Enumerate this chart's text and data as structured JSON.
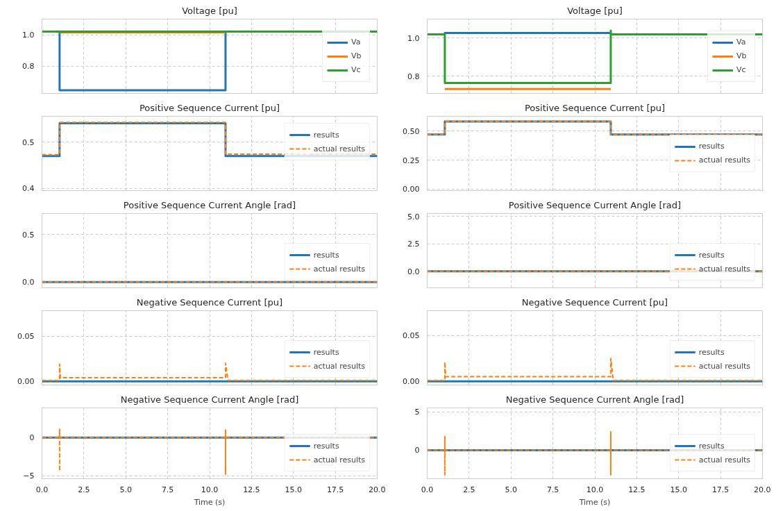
{
  "chart_data": [
    {
      "type": "line",
      "title": "Voltage [pu]",
      "xlim": [
        0,
        20
      ],
      "xticks": [
        0,
        2.5,
        5,
        7.5,
        10,
        12.5,
        15,
        17.5,
        20
      ],
      "ylim": [
        0.625,
        1.1
      ],
      "yticks": [
        0.8,
        {
          "value": 1.0,
          "label": "1.0"
        }
      ],
      "tick_labels": "y",
      "grid": true,
      "legend": "right",
      "line_style": "solid",
      "series": [
        {
          "name": "Va",
          "color": "#1f77b4",
          "x": [
            1.05,
            1.05,
            10.95,
            10.95
          ],
          "values": [
            1.02,
            0.645,
            0.645,
            1.02
          ]
        },
        {
          "name": "Vb",
          "color": "#ff7f0e",
          "x": [
            1.05,
            10.95
          ],
          "values": [
            1.015,
            1.015
          ]
        },
        {
          "name": "Vc",
          "color": "#2ca02c",
          "x": [
            0,
            1.05,
            1.05,
            10.95,
            10.95,
            20
          ],
          "values": [
            1.02,
            1.02,
            1.02,
            1.02,
            1.02,
            1.02
          ]
        }
      ]
    },
    {
      "type": "line",
      "title": "Positive Sequence Current [pu]",
      "xlim": [
        0,
        20
      ],
      "xticks": [
        0,
        2.5,
        5,
        7.5,
        10,
        12.5,
        15,
        17.5,
        20
      ],
      "ylim": [
        0.395,
        0.556
      ],
      "yticks": [
        0.4,
        0.5
      ],
      "tick_labels": "y",
      "grid": true,
      "legend": "top right",
      "series": [
        {
          "name": "results",
          "color": "#1f77b4",
          "line_style": "solid",
          "x": [
            0,
            1.05,
            1.05,
            10.95,
            10.95,
            20
          ],
          "values": [
            0.47,
            0.47,
            0.541,
            0.541,
            0.47,
            0.47
          ]
        },
        {
          "name": "actual results",
          "color": "#ff7f0e",
          "line_style": "dashed",
          "x": [
            0,
            1.05,
            1.05,
            10.95,
            10.95,
            20
          ],
          "values": [
            0.473,
            0.473,
            0.543,
            0.543,
            0.474,
            0.474
          ]
        }
      ]
    },
    {
      "type": "line",
      "title": "Positive Sequence Current Angle [rad]",
      "xlim": [
        0,
        20
      ],
      "xticks": [
        0,
        2.5,
        5,
        7.5,
        10,
        12.5,
        15,
        17.5,
        20
      ],
      "ylim": [
        -0.06,
        0.72
      ],
      "yticks": [
        {
          "value": 0,
          "label": "0.0"
        },
        0.5
      ],
      "tick_labels": "y",
      "grid": true,
      "legend": "bottom right",
      "series": [
        {
          "name": "results",
          "color": "#1f77b4",
          "line_style": "solid",
          "x": [
            0,
            20
          ],
          "values": [
            0,
            0
          ]
        },
        {
          "name": "actual results",
          "color": "#ff7f0e",
          "line_style": "dashed",
          "x": [
            0,
            20
          ],
          "values": [
            0,
            0
          ]
        }
      ]
    },
    {
      "type": "line",
      "title": "Negative Sequence Current [pu]",
      "xlim": [
        0,
        20
      ],
      "xticks": [
        0,
        2.5,
        5,
        7.5,
        10,
        12.5,
        15,
        17.5,
        20
      ],
      "ylim": [
        -0.004,
        0.078
      ],
      "yticks": [
        {
          "value": 0,
          "label": "0.00"
        },
        0.05
      ],
      "tick_labels": "y",
      "grid": true,
      "legend": "bottom right",
      "series": [
        {
          "name": "results",
          "color": "#1f77b4",
          "line_style": "solid",
          "x": [
            0,
            20
          ],
          "values": [
            0,
            0
          ]
        },
        {
          "name": "actual results",
          "color": "#ff7f0e",
          "line_style": "dashed",
          "x": [
            0,
            1.05,
            1.05,
            1.1,
            10.95,
            10.95,
            11.1,
            20
          ],
          "values": [
            0.001,
            0.001,
            0.019,
            0.004,
            0.004,
            0.02,
            0.001,
            0.001
          ]
        }
      ]
    },
    {
      "type": "line",
      "title": "Negative Sequence Current Angle [rad]",
      "xlabel": "Time (s)",
      "xlim": [
        0,
        20
      ],
      "xticks": [
        {
          "value": 0,
          "label": "0.0"
        },
        2.5,
        {
          "value": 5,
          "label": "5.0"
        },
        7.5,
        {
          "value": 10,
          "label": "10.0"
        },
        12.5,
        {
          "value": 15,
          "label": "15.0"
        },
        17.5,
        {
          "value": 20,
          "label": "20.0"
        }
      ],
      "ylim": [
        -5.4,
        3.9
      ],
      "yticks": [
        {
          "value": -5,
          "label": "−5"
        },
        0
      ],
      "grid": true,
      "legend": "bottom right",
      "series": [
        {
          "name": "results",
          "color": "#1f77b4",
          "line_style": "solid",
          "x": [
            0,
            20
          ],
          "values": [
            0,
            0
          ]
        },
        {
          "name": "actual results",
          "color": "#ff7f0e",
          "line_style": "dashed",
          "x": [
            0,
            1.05,
            1.05,
            1.05,
            1.05,
            10.95,
            10.95,
            10.95,
            10.95,
            20
          ],
          "values": [
            0,
            0,
            1.1,
            -4.4,
            0,
            0,
            1.0,
            -4.8,
            0,
            0
          ]
        }
      ]
    },
    {
      "type": "line",
      "title": "Voltage [pu]",
      "xlim": [
        0,
        20
      ],
      "xticks": [
        0,
        2.5,
        5,
        7.5,
        10,
        12.5,
        15,
        17.5,
        20
      ],
      "ylim": [
        0.71,
        1.1
      ],
      "yticks": [
        0.8,
        {
          "value": 1.0,
          "label": "1.0"
        }
      ],
      "tick_labels": "y",
      "grid": true,
      "legend": "right",
      "line_style": "solid",
      "series": [
        {
          "name": "Va",
          "color": "#1f77b4",
          "x": [
            1.05,
            1.05,
            10.95,
            10.95
          ],
          "values": [
            1.02,
            1.027,
            1.027,
            1.02
          ]
        },
        {
          "name": "Vb",
          "color": "#ff7f0e",
          "x": [
            1.05,
            10.95
          ],
          "values": [
            0.733,
            0.733
          ]
        },
        {
          "name": "Vc",
          "color": "#2ca02c",
          "x": [
            0,
            1.05,
            1.05,
            10.95,
            10.95,
            10.95,
            20
          ],
          "values": [
            1.02,
            1.02,
            0.765,
            0.765,
            1.04,
            1.02,
            1.02
          ]
        }
      ]
    },
    {
      "type": "line",
      "title": "Positive Sequence Current [pu]",
      "xlim": [
        0,
        20
      ],
      "xticks": [
        0,
        2.5,
        5,
        7.5,
        10,
        12.5,
        15,
        17.5,
        20
      ],
      "ylim": [
        -0.013,
        0.628
      ],
      "yticks": [
        {
          "value": 0,
          "label": "0.00"
        },
        {
          "value": 0.25,
          "label": "0.25"
        },
        {
          "value": 0.5,
          "label": "0.50"
        }
      ],
      "tick_labels": "y",
      "grid": true,
      "legend": "right",
      "series": [
        {
          "name": "results",
          "color": "#1f77b4",
          "line_style": "solid",
          "x": [
            0,
            1.05,
            1.05,
            10.95,
            10.95,
            20
          ],
          "values": [
            0.47,
            0.47,
            0.583,
            0.583,
            0.47,
            0.47
          ]
        },
        {
          "name": "actual results",
          "color": "#ff7f0e",
          "line_style": "dashed",
          "x": [
            0,
            1.05,
            1.05,
            10.95,
            10.95,
            20
          ],
          "values": [
            0.47,
            0.47,
            0.583,
            0.583,
            0.47,
            0.47
          ]
        }
      ]
    },
    {
      "type": "line",
      "title": "Positive Sequence Current Angle [rad]",
      "xlim": [
        0,
        20
      ],
      "xticks": [
        0,
        2.5,
        5,
        7.5,
        10,
        12.5,
        15,
        17.5,
        20
      ],
      "ylim": [
        -1.5,
        5.27
      ],
      "yticks": [
        {
          "value": 0,
          "label": "0.0"
        },
        2.5,
        {
          "value": 5,
          "label": "5.0"
        }
      ],
      "tick_labels": "y",
      "grid": true,
      "legend": "bottom right",
      "series": [
        {
          "name": "results",
          "color": "#1f77b4",
          "line_style": "solid",
          "x": [
            0,
            20
          ],
          "values": [
            0,
            0
          ]
        },
        {
          "name": "actual results",
          "color": "#ff7f0e",
          "line_style": "dashed",
          "x": [
            0,
            20
          ],
          "values": [
            0,
            0
          ]
        }
      ]
    },
    {
      "type": "line",
      "title": "Negative Sequence Current [pu]",
      "xlim": [
        0,
        20
      ],
      "xticks": [
        0,
        2.5,
        5,
        7.5,
        10,
        12.5,
        15,
        17.5,
        20
      ],
      "ylim": [
        -0.004,
        0.077
      ],
      "yticks": [
        {
          "value": 0,
          "label": "0.00"
        },
        0.05
      ],
      "tick_labels": "y",
      "grid": true,
      "legend": "bottom right",
      "series": [
        {
          "name": "results",
          "color": "#1f77b4",
          "line_style": "solid",
          "x": [
            0,
            20
          ],
          "values": [
            0,
            0
          ]
        },
        {
          "name": "actual results",
          "color": "#ff7f0e",
          "line_style": "dashed",
          "x": [
            0,
            1.05,
            1.05,
            1.1,
            10.95,
            10.95,
            11.1,
            20
          ],
          "values": [
            0.001,
            0.001,
            0.021,
            0.005,
            0.005,
            0.025,
            0.001,
            0.001
          ]
        }
      ]
    },
    {
      "type": "line",
      "title": "Negative Sequence Current Angle [rad]",
      "xlabel": "Time (s)",
      "xlim": [
        0,
        20
      ],
      "xticks": [
        {
          "value": 0,
          "label": "0.0"
        },
        2.5,
        {
          "value": 5,
          "label": "5.0"
        },
        7.5,
        {
          "value": 10,
          "label": "10.0"
        },
        12.5,
        {
          "value": 15,
          "label": "15.0"
        },
        17.5,
        {
          "value": 20,
          "label": "20.0"
        }
      ],
      "ylim": [
        -3.7,
        5.5
      ],
      "yticks": [
        0,
        5
      ],
      "grid": true,
      "legend": "bottom right",
      "series": [
        {
          "name": "results",
          "color": "#1f77b4",
          "line_style": "solid",
          "x": [
            0,
            20
          ],
          "values": [
            0,
            0
          ]
        },
        {
          "name": "actual results",
          "color": "#ff7f0e",
          "line_style": "dashed",
          "x": [
            0,
            1.05,
            1.05,
            1.05,
            1.05,
            10.95,
            10.95,
            10.95,
            10.95,
            20
          ],
          "values": [
            0,
            0,
            1.8,
            -3.2,
            0,
            0,
            2.4,
            -3.2,
            0,
            0
          ]
        }
      ]
    }
  ]
}
